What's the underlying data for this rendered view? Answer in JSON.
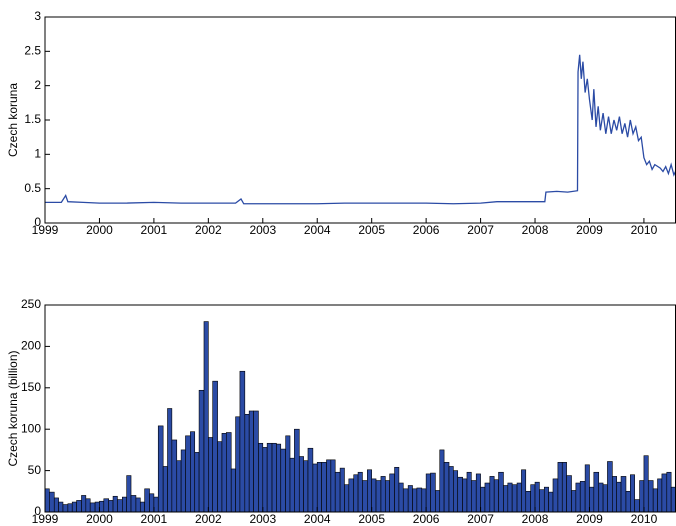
{
  "chart_data": [
    {
      "type": "line",
      "ylabel": "Czech koruna",
      "color": "#2b4ba5",
      "x": [
        1999.0,
        1999.3,
        1999.38,
        1999.42,
        1999.7,
        2000.0,
        2000.5,
        2001.0,
        2001.5,
        2002.0,
        2002.5,
        2002.6,
        2002.65,
        2003.0,
        2003.5,
        2004.0,
        2004.5,
        2005.0,
        2005.5,
        2006.0,
        2006.5,
        2007.0,
        2007.3,
        2007.6,
        2008.0,
        2008.18,
        2008.2,
        2008.4,
        2008.6,
        2008.78,
        2008.79,
        2008.82,
        2008.85,
        2008.88,
        2008.92,
        2008.96,
        2009.0,
        2009.05,
        2009.08,
        2009.12,
        2009.16,
        2009.2,
        2009.25,
        2009.3,
        2009.35,
        2009.4,
        2009.45,
        2009.5,
        2009.55,
        2009.6,
        2009.65,
        2009.7,
        2009.75,
        2009.8,
        2009.85,
        2009.9,
        2009.95,
        2010.0,
        2010.05,
        2010.1,
        2010.15,
        2010.2,
        2010.3,
        2010.35,
        2010.4,
        2010.45,
        2010.5,
        2010.55,
        2010.58
      ],
      "values": [
        0.3,
        0.3,
        0.4,
        0.31,
        0.3,
        0.29,
        0.29,
        0.3,
        0.29,
        0.29,
        0.29,
        0.35,
        0.28,
        0.28,
        0.28,
        0.28,
        0.29,
        0.29,
        0.29,
        0.29,
        0.28,
        0.29,
        0.31,
        0.31,
        0.31,
        0.31,
        0.45,
        0.46,
        0.45,
        0.47,
        2.2,
        2.45,
        2.1,
        2.35,
        1.9,
        2.1,
        1.8,
        1.5,
        1.95,
        1.4,
        1.7,
        1.35,
        1.6,
        1.3,
        1.55,
        1.3,
        1.5,
        1.35,
        1.55,
        1.3,
        1.45,
        1.25,
        1.5,
        1.3,
        1.4,
        1.2,
        1.25,
        0.95,
        0.85,
        0.9,
        0.78,
        0.85,
        0.8,
        0.75,
        0.82,
        0.72,
        0.85,
        0.7,
        0.75
      ],
      "xlim": [
        1999,
        2010.58
      ],
      "xticks": [
        1999,
        2000,
        2001,
        2002,
        2003,
        2004,
        2005,
        2006,
        2007,
        2008,
        2009,
        2010
      ],
      "ylim": [
        0,
        3
      ],
      "yticks": [
        0,
        0.5,
        1,
        1.5,
        2,
        2.5,
        3
      ]
    },
    {
      "type": "bar",
      "ylabel": "Czech koruna (billion)",
      "color": "#2b4ba5",
      "x": [
        1999.0,
        1999.08,
        1999.17,
        1999.25,
        1999.33,
        1999.42,
        1999.5,
        1999.58,
        1999.67,
        1999.75,
        1999.83,
        1999.92,
        2000.0,
        2000.08,
        2000.17,
        2000.25,
        2000.33,
        2000.42,
        2000.5,
        2000.58,
        2000.67,
        2000.75,
        2000.83,
        2000.92,
        2001.0,
        2001.08,
        2001.17,
        2001.25,
        2001.33,
        2001.42,
        2001.5,
        2001.58,
        2001.67,
        2001.75,
        2001.83,
        2001.92,
        2002.0,
        2002.08,
        2002.17,
        2002.25,
        2002.33,
        2002.42,
        2002.5,
        2002.58,
        2002.67,
        2002.75,
        2002.83,
        2002.92,
        2003.0,
        2003.08,
        2003.17,
        2003.25,
        2003.33,
        2003.42,
        2003.5,
        2003.58,
        2003.67,
        2003.75,
        2003.83,
        2003.92,
        2004.0,
        2004.08,
        2004.17,
        2004.25,
        2004.33,
        2004.42,
        2004.5,
        2004.58,
        2004.67,
        2004.75,
        2004.83,
        2004.92,
        2005.0,
        2005.08,
        2005.17,
        2005.25,
        2005.33,
        2005.42,
        2005.5,
        2005.58,
        2005.67,
        2005.75,
        2005.83,
        2005.92,
        2006.0,
        2006.08,
        2006.17,
        2006.25,
        2006.33,
        2006.42,
        2006.5,
        2006.58,
        2006.67,
        2006.75,
        2006.83,
        2006.92,
        2007.0,
        2007.08,
        2007.17,
        2007.25,
        2007.33,
        2007.42,
        2007.5,
        2007.58,
        2007.67,
        2007.75,
        2007.83,
        2007.92,
        2008.0,
        2008.08,
        2008.17,
        2008.25,
        2008.33,
        2008.42,
        2008.5,
        2008.58,
        2008.67,
        2008.75,
        2008.83,
        2008.92,
        2009.0,
        2009.08,
        2009.17,
        2009.25,
        2009.33,
        2009.42,
        2009.5,
        2009.58,
        2009.67,
        2009.75,
        2009.83,
        2009.92,
        2010.0,
        2010.08,
        2010.17,
        2010.25,
        2010.33,
        2010.42,
        2010.5
      ],
      "values": [
        28,
        24,
        17,
        12,
        9,
        10,
        12,
        14,
        20,
        16,
        11,
        12,
        13,
        16,
        14,
        19,
        15,
        18,
        44,
        20,
        17,
        12,
        28,
        22,
        18,
        104,
        55,
        125,
        87,
        62,
        75,
        92,
        97,
        72,
        147,
        230,
        90,
        158,
        85,
        95,
        96,
        52,
        115,
        170,
        118,
        122,
        122,
        83,
        78,
        83,
        83,
        82,
        76,
        92,
        65,
        100,
        67,
        62,
        77,
        58,
        60,
        60,
        63,
        63,
        48,
        53,
        33,
        40,
        45,
        48,
        38,
        51,
        40,
        38,
        43,
        38,
        46,
        54,
        35,
        28,
        32,
        28,
        29,
        28,
        46,
        47,
        26,
        75,
        60,
        55,
        50,
        42,
        40,
        48,
        38,
        46,
        30,
        35,
        43,
        39,
        48,
        32,
        35,
        33,
        35,
        51,
        25,
        33,
        36,
        27,
        30,
        24,
        40,
        60,
        60,
        44,
        26,
        35,
        37,
        57,
        30,
        48,
        35,
        33,
        61,
        43,
        36,
        43,
        25,
        45,
        15,
        38,
        68,
        38,
        28,
        40,
        46,
        48,
        30
      ],
      "xlim": [
        1999,
        2010.58
      ],
      "xticks": [
        1999,
        2000,
        2001,
        2002,
        2003,
        2004,
        2005,
        2006,
        2007,
        2008,
        2009,
        2010
      ],
      "ylim": [
        0,
        250
      ],
      "yticks": [
        0,
        50,
        100,
        150,
        200,
        250
      ]
    }
  ]
}
